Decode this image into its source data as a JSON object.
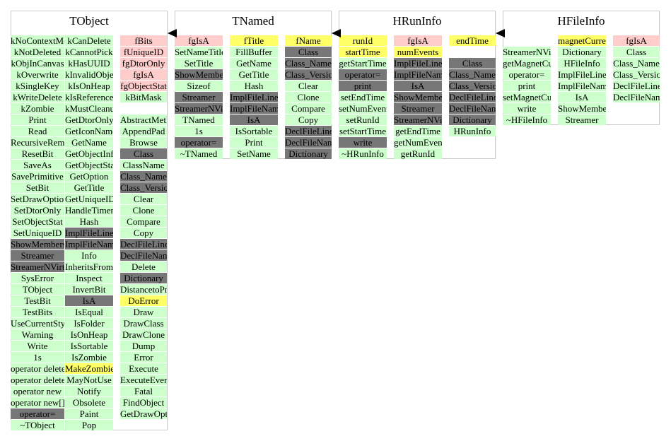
{
  "classes": [
    {
      "title": "TObject",
      "columns": [
        [
          {
            "text": "kNoContextMenu",
            "c": "g"
          },
          {
            "text": "kNotDeleted",
            "c": "g"
          },
          {
            "text": "kObjInCanvas",
            "c": "g"
          },
          {
            "text": "kOverwrite",
            "c": "g"
          },
          {
            "text": "kSingleKey",
            "c": "g"
          },
          {
            "text": "kWriteDelete",
            "c": "g"
          },
          {
            "text": "kZombie",
            "c": "g"
          },
          {
            "text": "Print",
            "c": "g"
          },
          {
            "text": "Read",
            "c": "g"
          },
          {
            "text": "RecursiveRemove",
            "c": "g"
          },
          {
            "text": "ResetBit",
            "c": "g"
          },
          {
            "text": "SaveAs",
            "c": "g"
          },
          {
            "text": "SavePrimitive",
            "c": "g"
          },
          {
            "text": "SetBit",
            "c": "g"
          },
          {
            "text": "SetDrawOption",
            "c": "g"
          },
          {
            "text": "SetDtorOnly",
            "c": "g"
          },
          {
            "text": "SetObjectStat",
            "c": "g"
          },
          {
            "text": "SetUniqueID",
            "c": "g"
          },
          {
            "text": "ShowMembers",
            "c": "d"
          },
          {
            "text": "Streamer",
            "c": "d"
          },
          {
            "text": "StreamerNVirtual",
            "c": "d"
          },
          {
            "text": "SysError",
            "c": "g"
          },
          {
            "text": "TObject",
            "c": "g"
          },
          {
            "text": "TestBit",
            "c": "g"
          },
          {
            "text": "TestBits",
            "c": "g"
          },
          {
            "text": "UseCurrentStyle",
            "c": "g"
          },
          {
            "text": "Warning",
            "c": "g"
          },
          {
            "text": "Write",
            "c": "g"
          },
          {
            "text": "1s",
            "c": "g"
          },
          {
            "text": "operator delete",
            "c": "g"
          },
          {
            "text": "operator delete[]",
            "c": "g"
          },
          {
            "text": "operator new",
            "c": "g"
          },
          {
            "text": "operator new[]",
            "c": "g"
          },
          {
            "text": "operator=",
            "c": "d"
          },
          {
            "text": "~TObject",
            "c": "g"
          }
        ],
        [
          {
            "text": "kCanDelete",
            "c": "g"
          },
          {
            "text": "kCannotPick",
            "c": "g"
          },
          {
            "text": "kHasUUID",
            "c": "g"
          },
          {
            "text": "kInvalidObject",
            "c": "g"
          },
          {
            "text": "kIsOnHeap",
            "c": "g"
          },
          {
            "text": "kIsReferenced",
            "c": "g"
          },
          {
            "text": "kMustCleanup",
            "c": "g"
          },
          {
            "text": "GetDtorOnly",
            "c": "g"
          },
          {
            "text": "GetIconName",
            "c": "g"
          },
          {
            "text": "GetName",
            "c": "g"
          },
          {
            "text": "GetObjectInfo",
            "c": "g"
          },
          {
            "text": "GetObjectStat",
            "c": "g"
          },
          {
            "text": "GetOption",
            "c": "g"
          },
          {
            "text": "GetTitle",
            "c": "g"
          },
          {
            "text": "GetUniqueID",
            "c": "g"
          },
          {
            "text": "HandleTimer",
            "c": "g"
          },
          {
            "text": "Hash",
            "c": "g"
          },
          {
            "text": "ImplFileLine",
            "c": "d"
          },
          {
            "text": "ImplFileName",
            "c": "d"
          },
          {
            "text": "Info",
            "c": "g"
          },
          {
            "text": "InheritsFrom",
            "c": "g"
          },
          {
            "text": "Inspect",
            "c": "g"
          },
          {
            "text": "InvertBit",
            "c": "g"
          },
          {
            "text": "IsA",
            "c": "d"
          },
          {
            "text": "IsEqual",
            "c": "g"
          },
          {
            "text": "IsFolder",
            "c": "g"
          },
          {
            "text": "IsOnHeap",
            "c": "g"
          },
          {
            "text": "IsSortable",
            "c": "g"
          },
          {
            "text": "IsZombie",
            "c": "g"
          },
          {
            "text": "MakeZombie",
            "c": "y"
          },
          {
            "text": "MayNotUse",
            "c": "g"
          },
          {
            "text": "Notify",
            "c": "g"
          },
          {
            "text": "Obsolete",
            "c": "g"
          },
          {
            "text": "Paint",
            "c": "g"
          },
          {
            "text": "Pop",
            "c": "g"
          }
        ],
        [
          {
            "text": "fBits",
            "c": "p"
          },
          {
            "text": "fUniqueID",
            "c": "p"
          },
          {
            "text": "fgDtorOnly",
            "c": "p"
          },
          {
            "text": "fgIsA",
            "c": "p"
          },
          {
            "text": "fgObjectStat",
            "c": "p"
          },
          {
            "text": "kBitMask",
            "c": "g"
          },
          {
            "text": "",
            "c": "n"
          },
          {
            "text": "AbstractMethod",
            "c": "g"
          },
          {
            "text": "AppendPad",
            "c": "g"
          },
          {
            "text": "Browse",
            "c": "g"
          },
          {
            "text": "Class",
            "c": "d"
          },
          {
            "text": "ClassName",
            "c": "g"
          },
          {
            "text": "Class_Name",
            "c": "d"
          },
          {
            "text": "Class_Version",
            "c": "d"
          },
          {
            "text": "Clear",
            "c": "g"
          },
          {
            "text": "Clone",
            "c": "g"
          },
          {
            "text": "Compare",
            "c": "g"
          },
          {
            "text": "Copy",
            "c": "g"
          },
          {
            "text": "DeclFileLine",
            "c": "d"
          },
          {
            "text": "DeclFileName",
            "c": "d"
          },
          {
            "text": "Delete",
            "c": "g"
          },
          {
            "text": "Dictionary",
            "c": "d"
          },
          {
            "text": "DistancetoPrimitive",
            "c": "g"
          },
          {
            "text": "DoError",
            "c": "y"
          },
          {
            "text": "Draw",
            "c": "g"
          },
          {
            "text": "DrawClass",
            "c": "g"
          },
          {
            "text": "DrawClone",
            "c": "g"
          },
          {
            "text": "Dump",
            "c": "g"
          },
          {
            "text": "Error",
            "c": "g"
          },
          {
            "text": "Execute",
            "c": "g"
          },
          {
            "text": "ExecuteEvent",
            "c": "g"
          },
          {
            "text": "Fatal",
            "c": "g"
          },
          {
            "text": "FindObject",
            "c": "g"
          },
          {
            "text": "GetDrawOption",
            "c": "g"
          }
        ]
      ]
    },
    {
      "title": "TNamed",
      "columns": [
        [
          {
            "text": "fgIsA",
            "c": "p"
          },
          {
            "text": "SetNameTitle",
            "c": "g"
          },
          {
            "text": "SetTitle",
            "c": "g"
          },
          {
            "text": "ShowMembers",
            "c": "d"
          },
          {
            "text": "Sizeof",
            "c": "g"
          },
          {
            "text": "Streamer",
            "c": "d"
          },
          {
            "text": "StreamerNVirtual",
            "c": "d"
          },
          {
            "text": "TNamed",
            "c": "g"
          },
          {
            "text": "1s",
            "c": "g"
          },
          {
            "text": "operator=",
            "c": "d"
          },
          {
            "text": "~TNamed",
            "c": "g"
          }
        ],
        [
          {
            "text": "fTitle",
            "c": "y"
          },
          {
            "text": "FillBuffer",
            "c": "g"
          },
          {
            "text": "GetName",
            "c": "g"
          },
          {
            "text": "GetTitle",
            "c": "g"
          },
          {
            "text": "Hash",
            "c": "g"
          },
          {
            "text": "ImplFileLine",
            "c": "d"
          },
          {
            "text": "ImplFileName",
            "c": "d"
          },
          {
            "text": "IsA",
            "c": "d"
          },
          {
            "text": "IsSortable",
            "c": "g"
          },
          {
            "text": "Print",
            "c": "g"
          },
          {
            "text": "SetName",
            "c": "g"
          }
        ],
        [
          {
            "text": "fName",
            "c": "y"
          },
          {
            "text": "Class",
            "c": "d"
          },
          {
            "text": "Class_Name",
            "c": "d"
          },
          {
            "text": "Class_Version",
            "c": "d"
          },
          {
            "text": "Clear",
            "c": "g"
          },
          {
            "text": "Clone",
            "c": "g"
          },
          {
            "text": "Compare",
            "c": "g"
          },
          {
            "text": "Copy",
            "c": "g"
          },
          {
            "text": "DeclFileLine",
            "c": "d"
          },
          {
            "text": "DeclFileName",
            "c": "d"
          },
          {
            "text": "Dictionary",
            "c": "d"
          }
        ]
      ]
    },
    {
      "title": "HRunInfo",
      "columns": [
        [
          {
            "text": "runId",
            "c": "y"
          },
          {
            "text": "startTime",
            "c": "y"
          },
          {
            "text": "getStartTime",
            "c": "g"
          },
          {
            "text": "operator=",
            "c": "d"
          },
          {
            "text": "print",
            "c": "d"
          },
          {
            "text": "setEndTime",
            "c": "g"
          },
          {
            "text": "setNumEvents",
            "c": "g"
          },
          {
            "text": "setRunId",
            "c": "g"
          },
          {
            "text": "setStartTime",
            "c": "g"
          },
          {
            "text": "write",
            "c": "d"
          },
          {
            "text": "~HRunInfo",
            "c": "g"
          }
        ],
        [
          {
            "text": "fgIsA",
            "c": "p"
          },
          {
            "text": "numEvents",
            "c": "y"
          },
          {
            "text": "ImplFileLine",
            "c": "d"
          },
          {
            "text": "ImplFileName",
            "c": "d"
          },
          {
            "text": "IsA",
            "c": "d"
          },
          {
            "text": "ShowMembers",
            "c": "d"
          },
          {
            "text": "Streamer",
            "c": "d"
          },
          {
            "text": "StreamerNVirtual",
            "c": "d"
          },
          {
            "text": "getEndTime",
            "c": "g"
          },
          {
            "text": "getNumEvents",
            "c": "g"
          },
          {
            "text": "getRunId",
            "c": "g"
          }
        ],
        [
          {
            "text": "endTime",
            "c": "y"
          },
          {
            "text": "",
            "c": "n"
          },
          {
            "text": "Class",
            "c": "d"
          },
          {
            "text": "Class_Name",
            "c": "d"
          },
          {
            "text": "Class_Version",
            "c": "d"
          },
          {
            "text": "DeclFileLine",
            "c": "d"
          },
          {
            "text": "DeclFileName",
            "c": "d"
          },
          {
            "text": "Dictionary",
            "c": "d"
          },
          {
            "text": "HRunInfo",
            "c": "g"
          }
        ]
      ]
    },
    {
      "title": "HFileInfo",
      "columns": [
        [
          {
            "text": "",
            "c": "n"
          },
          {
            "text": "StreamerNVirtual",
            "c": "g"
          },
          {
            "text": "getMagnetCurrent",
            "c": "g"
          },
          {
            "text": "operator=",
            "c": "g"
          },
          {
            "text": "print",
            "c": "g"
          },
          {
            "text": "setMagnetCurrent",
            "c": "g"
          },
          {
            "text": "write",
            "c": "g"
          },
          {
            "text": "~HFileInfo",
            "c": "g"
          }
        ],
        [
          {
            "text": "magnetCurrent",
            "c": "y"
          },
          {
            "text": "Dictionary",
            "c": "g"
          },
          {
            "text": "HFileInfo",
            "c": "g"
          },
          {
            "text": "ImplFileLine",
            "c": "g"
          },
          {
            "text": "ImplFileName",
            "c": "g"
          },
          {
            "text": "IsA",
            "c": "g"
          },
          {
            "text": "ShowMembers",
            "c": "g"
          },
          {
            "text": "Streamer",
            "c": "g"
          }
        ],
        [
          {
            "text": "fgIsA",
            "c": "p"
          },
          {
            "text": "Class",
            "c": "g"
          },
          {
            "text": "Class_Name",
            "c": "g"
          },
          {
            "text": "Class_Version",
            "c": "g"
          },
          {
            "text": "DeclFileLine",
            "c": "g"
          },
          {
            "text": "DeclFileName",
            "c": "g"
          }
        ]
      ]
    }
  ],
  "inheritance": [
    {
      "from": "HFileInfo",
      "to": "HRunInfo"
    },
    {
      "from": "HRunInfo",
      "to": "TNamed"
    },
    {
      "from": "TNamed",
      "to": "TObject"
    }
  ]
}
